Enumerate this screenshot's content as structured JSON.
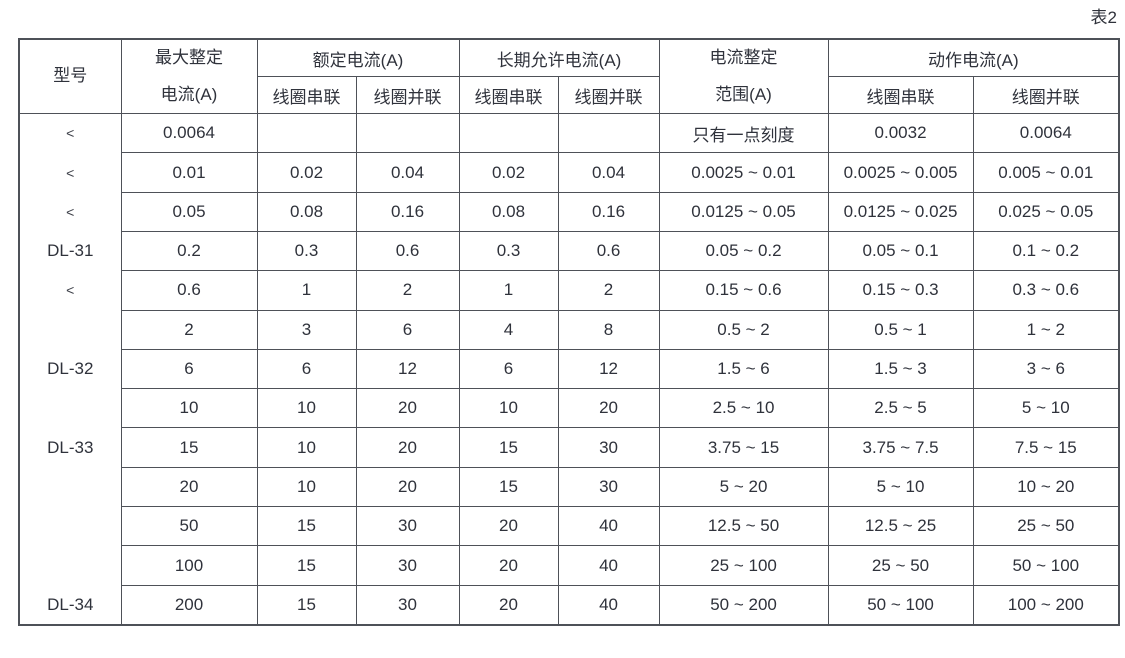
{
  "caption": "表2",
  "colors": {
    "background": "#ffffff",
    "text": "#2f323b",
    "border": "#4e5158"
  },
  "table": {
    "headers": {
      "model": "型号",
      "max_setting": "最大整定\n电流(A)",
      "rated": "额定电流(A)",
      "long_term": "长期允许电流(A)",
      "setting_range": "电流整定\n范围(A)",
      "operating": "动作电流(A)",
      "sub": [
        "线圈串联",
        "线圈并联",
        "线圈串联",
        "线圈并联",
        "线圈串联",
        "线圈并联"
      ]
    },
    "rows": [
      [
        "<",
        "0.0064",
        "",
        "",
        "",
        "",
        "只有一点刻度",
        "0.0032",
        "0.0064"
      ],
      [
        "<",
        "0.01",
        "0.02",
        "0.04",
        "0.02",
        "0.04",
        "0.0025 ~ 0.01",
        "0.0025 ~ 0.005",
        "0.005 ~ 0.01"
      ],
      [
        "<",
        "0.05",
        "0.08",
        "0.16",
        "0.08",
        "0.16",
        "0.0125 ~ 0.05",
        "0.0125 ~ 0.025",
        "0.025 ~ 0.05"
      ],
      [
        "DL-31",
        "0.2",
        "0.3",
        "0.6",
        "0.3",
        "0.6",
        "0.05 ~ 0.2",
        "0.05 ~ 0.1",
        "0.1 ~ 0.2"
      ],
      [
        "<",
        "0.6",
        "1",
        "2",
        "1",
        "2",
        "0.15 ~ 0.6",
        "0.15 ~ 0.3",
        "0.3 ~ 0.6"
      ],
      [
        "",
        "2",
        "3",
        "6",
        "4",
        "8",
        "0.5 ~ 2",
        "0.5 ~ 1",
        "1 ~ 2"
      ],
      [
        "DL-32",
        "6",
        "6",
        "12",
        "6",
        "12",
        "1.5 ~ 6",
        "1.5 ~ 3",
        "3 ~ 6"
      ],
      [
        "",
        "10",
        "10",
        "20",
        "10",
        "20",
        "2.5 ~ 10",
        "2.5 ~ 5",
        "5 ~ 10"
      ],
      [
        "DL-33",
        "15",
        "10",
        "20",
        "15",
        "30",
        "3.75 ~ 15",
        "3.75 ~ 7.5",
        "7.5 ~ 15"
      ],
      [
        "",
        "20",
        "10",
        "20",
        "15",
        "30",
        "5 ~ 20",
        "5 ~ 10",
        "10 ~ 20"
      ],
      [
        "",
        "50",
        "15",
        "30",
        "20",
        "40",
        "12.5 ~ 50",
        "12.5 ~ 25",
        "25 ~ 50"
      ],
      [
        "",
        "100",
        "15",
        "30",
        "20",
        "40",
        "25 ~ 100",
        "25 ~ 50",
        "50 ~ 100"
      ],
      [
        "DL-34",
        "200",
        "15",
        "30",
        "20",
        "40",
        "50 ~ 200",
        "50 ~ 100",
        "100 ~ 200"
      ]
    ]
  }
}
